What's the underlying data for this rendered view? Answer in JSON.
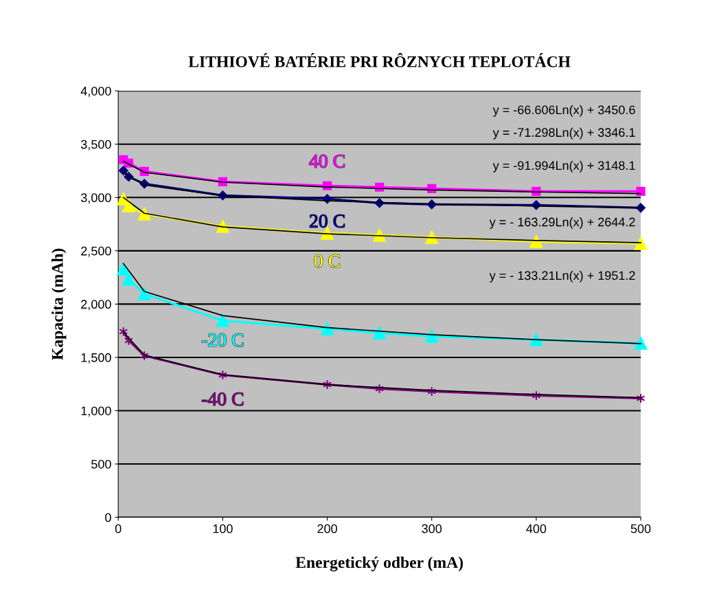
{
  "chart_data": {
    "type": "line",
    "title": "LITHIOVÉ BATÉRIE PRI RÔZNYCH TEPLOTÁCH",
    "xlabel": "Energetický odber (mA)",
    "ylabel": "Kapacita (mAh)",
    "x": [
      5,
      10,
      25,
      100,
      200,
      250,
      300,
      400,
      500
    ],
    "series": [
      {
        "name": "40 C",
        "color": "#ff00ff",
        "marker": "square",
        "values": [
          3355,
          3323,
          3245,
          3148,
          3110,
          3097,
          3084,
          3058,
          3058
        ]
      },
      {
        "name": "20 C",
        "color": "#000080",
        "marker": "diamond",
        "values": [
          3252,
          3194,
          3129,
          3019,
          2987,
          2948,
          2935,
          2929,
          2903
        ]
      },
      {
        "name": "0 C",
        "color": "#ffff00",
        "marker": "triangle",
        "values": [
          2987,
          2923,
          2845,
          2729,
          2665,
          2645,
          2626,
          2587,
          2568
        ]
      },
      {
        "name": "-20 C",
        "color": "#00ffff",
        "marker": "triangle",
        "values": [
          2329,
          2232,
          2097,
          1845,
          1768,
          1729,
          1697,
          1665,
          1632
        ]
      },
      {
        "name": "-40 C",
        "color": "#800080",
        "marker": "cross",
        "values": [
          1742,
          1658,
          1516,
          1335,
          1245,
          1206,
          1181,
          1142,
          1116
        ]
      },
      {
        "color": "#000000",
        "marker": "none",
        "x": [
          5,
          25,
          100,
          200,
          300,
          400,
          500
        ],
        "values": [
          3340,
          3236,
          3144,
          3098,
          3071,
          3052,
          3037
        ]
      },
      {
        "color": "#000000",
        "marker": "none",
        "x": [
          5,
          25,
          100,
          200,
          300,
          400,
          500
        ],
        "values": [
          3231,
          3117,
          3018,
          2969,
          2939,
          2919,
          2903
        ]
      },
      {
        "color": "#000000",
        "marker": "none",
        "x": [
          5,
          25,
          100,
          200,
          300,
          400,
          500
        ],
        "values": [
          3000,
          2852,
          2724,
          2660,
          2623,
          2597,
          2576
        ]
      },
      {
        "color": "#000000",
        "marker": "none",
        "x": [
          5,
          25,
          100,
          200,
          300,
          400,
          500
        ],
        "values": [
          2380,
          2119,
          1892,
          1779,
          1713,
          1666,
          1630
        ]
      },
      {
        "color": "#000000",
        "marker": "none",
        "x": [
          5,
          25,
          100,
          200,
          300,
          400,
          500
        ],
        "values": [
          1736,
          1522,
          1337,
          1244,
          1191,
          1152,
          1122
        ]
      }
    ],
    "annotations": [
      "y = -66.606Ln(x) + 3450.6",
      "y = -71.298Ln(x) + 3346.1",
      "y = -91.994Ln(x) + 3148.1",
      "y = - 163.29Ln(x) + 2644.2",
      "y = - 133.21Ln(x) + 1951.2"
    ],
    "xlim": [
      0,
      500
    ],
    "xticks": [
      0,
      100,
      200,
      300,
      400,
      500
    ],
    "ylim": [
      0,
      4000
    ],
    "yticks": [
      {
        "value": 0,
        "label": "0"
      },
      {
        "value": 500,
        "label": "500"
      },
      {
        "value": 1000,
        "label": "1,000"
      },
      {
        "value": 1500,
        "label": "1,500"
      },
      {
        "value": 2000,
        "label": "2,000"
      },
      {
        "value": 2500,
        "label": "2,500"
      },
      {
        "value": 3000,
        "label": "3,000"
      },
      {
        "value": 3500,
        "label": "3,500"
      },
      {
        "value": 4000,
        "label": "4,000"
      }
    ],
    "grid": "y",
    "line_style": "solid"
  }
}
